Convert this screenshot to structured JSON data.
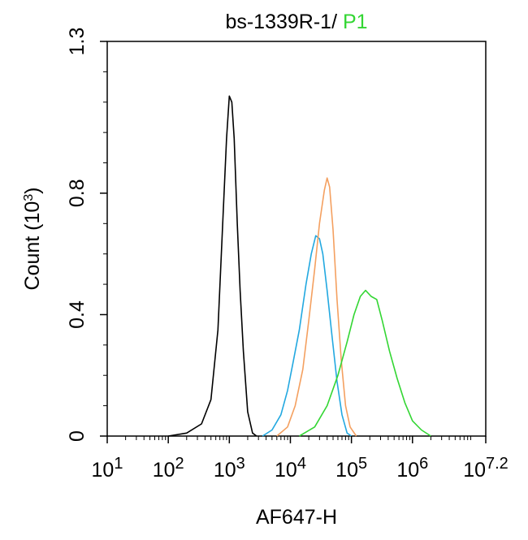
{
  "chart_data": {
    "type": "line",
    "title_prefix": "bs-1339R-1/ ",
    "title_suffix": "P1",
    "xlabel": "AF647-H",
    "ylabel": "Count",
    "ylabel_unit_base": "(10",
    "ylabel_unit_exp": "3",
    "ylabel_unit_close": ")",
    "x_scale": "log10",
    "xlim": [
      10,
      15848932
    ],
    "ylim": [
      0,
      1.3
    ],
    "grid": false,
    "x_ticks": [
      {
        "base": "10",
        "exp": "1",
        "value": 10
      },
      {
        "base": "10",
        "exp": "2",
        "value": 100
      },
      {
        "base": "10",
        "exp": "3",
        "value": 1000
      },
      {
        "base": "10",
        "exp": "4",
        "value": 10000
      },
      {
        "base": "10",
        "exp": "5",
        "value": 100000
      },
      {
        "base": "10",
        "exp": "6",
        "value": 1000000
      },
      {
        "base": "10",
        "exp": "7.2",
        "value": 15848932
      }
    ],
    "y_ticks": [
      {
        "label": "0",
        "value": 0
      },
      {
        "label": "0.4",
        "value": 0.4
      },
      {
        "label": "0.8",
        "value": 0.8
      },
      {
        "label": "1.3",
        "value": 1.3
      }
    ],
    "series": [
      {
        "color": "#000000",
        "points": [
          [
            100,
            0
          ],
          [
            200,
            0.01
          ],
          [
            350,
            0.04
          ],
          [
            500,
            0.12
          ],
          [
            650,
            0.35
          ],
          [
            800,
            0.75
          ],
          [
            900,
            0.98
          ],
          [
            1000,
            1.12
          ],
          [
            1100,
            1.1
          ],
          [
            1200,
            0.98
          ],
          [
            1350,
            0.7
          ],
          [
            1500,
            0.48
          ],
          [
            1700,
            0.28
          ],
          [
            2000,
            0.08
          ],
          [
            2400,
            0.01
          ],
          [
            2800,
            0
          ]
        ]
      },
      {
        "color": "#22a8e0",
        "points": [
          [
            3500,
            0
          ],
          [
            5000,
            0.02
          ],
          [
            7000,
            0.07
          ],
          [
            9000,
            0.15
          ],
          [
            11000,
            0.24
          ],
          [
            14000,
            0.35
          ],
          [
            18000,
            0.5
          ],
          [
            22000,
            0.6
          ],
          [
            26000,
            0.66
          ],
          [
            30000,
            0.65
          ],
          [
            34000,
            0.6
          ],
          [
            40000,
            0.48
          ],
          [
            48000,
            0.33
          ],
          [
            58000,
            0.18
          ],
          [
            70000,
            0.07
          ],
          [
            85000,
            0.01
          ],
          [
            100000,
            0
          ]
        ]
      },
      {
        "color": "#f4a060",
        "points": [
          [
            6000,
            0
          ],
          [
            9000,
            0.03
          ],
          [
            12000,
            0.1
          ],
          [
            16000,
            0.22
          ],
          [
            20000,
            0.38
          ],
          [
            25000,
            0.55
          ],
          [
            30000,
            0.7
          ],
          [
            36000,
            0.81
          ],
          [
            40000,
            0.85
          ],
          [
            44000,
            0.82
          ],
          [
            50000,
            0.68
          ],
          [
            58000,
            0.45
          ],
          [
            68000,
            0.25
          ],
          [
            80000,
            0.1
          ],
          [
            95000,
            0.03
          ],
          [
            120000,
            0
          ]
        ]
      },
      {
        "color": "#33d633",
        "points": [
          [
            14000,
            0
          ],
          [
            25000,
            0.03
          ],
          [
            40000,
            0.1
          ],
          [
            60000,
            0.2
          ],
          [
            85000,
            0.31
          ],
          [
            110000,
            0.4
          ],
          [
            140000,
            0.46
          ],
          [
            170000,
            0.48
          ],
          [
            210000,
            0.46
          ],
          [
            260000,
            0.45
          ],
          [
            320000,
            0.38
          ],
          [
            420000,
            0.28
          ],
          [
            560000,
            0.19
          ],
          [
            750000,
            0.11
          ],
          [
            1000000,
            0.05
          ],
          [
            1400000,
            0.02
          ],
          [
            2000000,
            0
          ]
        ]
      }
    ]
  },
  "colors": {
    "title_prefix": "#000000",
    "title_suffix": "#33d633",
    "axis": "#000000"
  }
}
